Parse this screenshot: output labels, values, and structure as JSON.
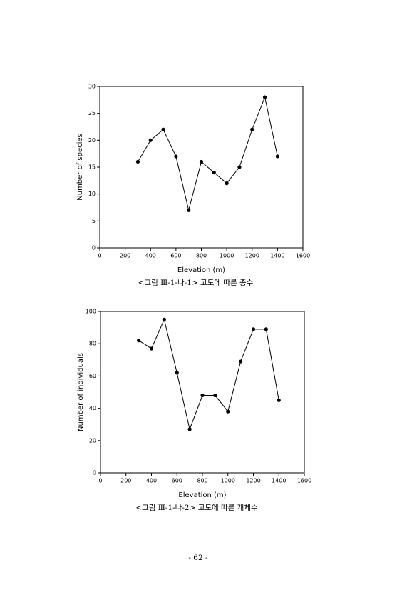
{
  "chart_data": [
    {
      "type": "line",
      "x": [
        300,
        400,
        500,
        600,
        700,
        800,
        900,
        1000,
        1100,
        1200,
        1300,
        1400
      ],
      "values": [
        16,
        20,
        22,
        17,
        7,
        16,
        14,
        12,
        15,
        22,
        28,
        17
      ],
      "color": "#000000",
      "xlabel": "Elevation (m)",
      "ylabel": "Number of species",
      "xlim": [
        0,
        1600
      ],
      "xticks": [
        0,
        200,
        400,
        600,
        800,
        1000,
        1200,
        1400,
        1600
      ],
      "ylim": [
        0,
        30
      ],
      "yticks": [
        0,
        5,
        10,
        15,
        20,
        25,
        30
      ],
      "caption": "<그림 Ⅲ-1-나-1> 고도에 따른 종수"
    },
    {
      "type": "line",
      "x": [
        300,
        400,
        500,
        600,
        700,
        800,
        900,
        1000,
        1100,
        1200,
        1300,
        1400
      ],
      "values": [
        82,
        77,
        95,
        62,
        27,
        48,
        48,
        38,
        69,
        89,
        89,
        45
      ],
      "color": "#000000",
      "xlabel": "Elevation (m)",
      "ylabel": "Number of individuals",
      "xlim": [
        0,
        1600
      ],
      "xticks": [
        0,
        200,
        400,
        600,
        800,
        1000,
        1200,
        1400,
        1600
      ],
      "ylim": [
        0,
        100
      ],
      "yticks": [
        0,
        20,
        40,
        60,
        80,
        100
      ],
      "caption": "<그림 Ⅲ-1-나-2> 고도에 따른 개체수"
    }
  ],
  "page_number": "- 62 -"
}
